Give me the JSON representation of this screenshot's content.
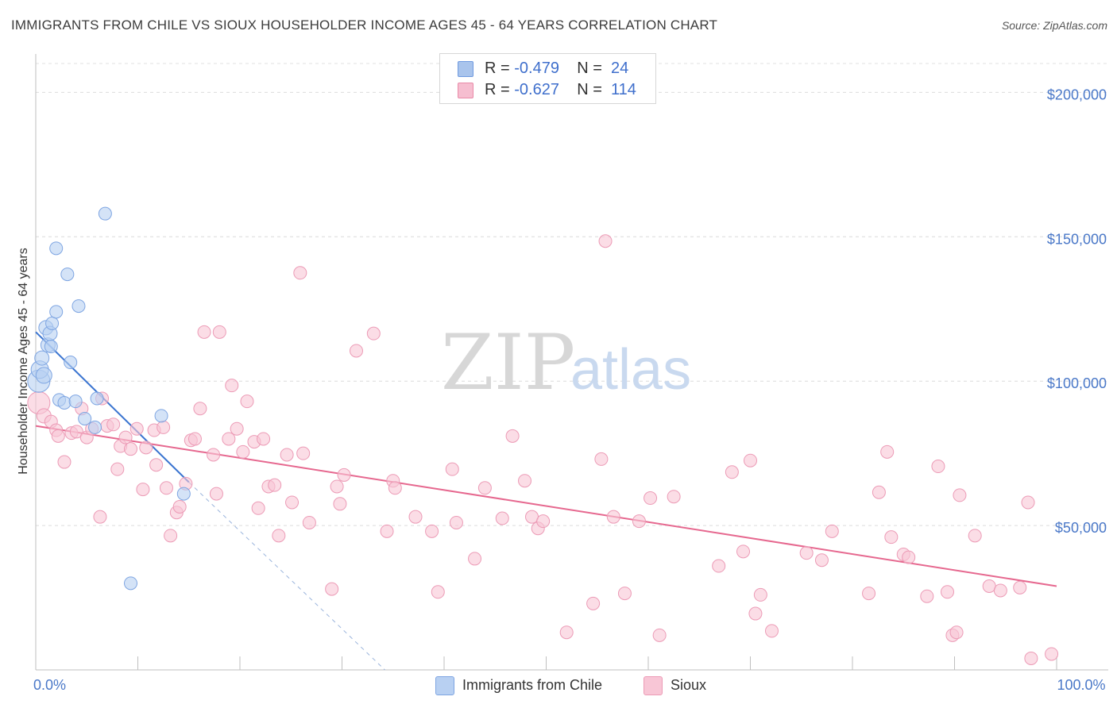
{
  "header": {
    "title": "IMMIGRANTS FROM CHILE VS SIOUX HOUSEHOLDER INCOME AGES 45 - 64 YEARS CORRELATION CHART",
    "source": "Source: ZipAtlas.com"
  },
  "watermark": {
    "zip": "ZIP",
    "atlas": "atlas"
  },
  "legend": {
    "rows": [
      {
        "r_label": "R =",
        "r_value": "-0.479",
        "n_label": "N =",
        "n_value": "24",
        "color": "#a9c4ec",
        "border": "#6f9ae0"
      },
      {
        "r_label": "R =",
        "r_value": "-0.627",
        "n_label": "N =",
        "n_value": "114",
        "color": "#f6bed0",
        "border": "#e98aa8"
      }
    ]
  },
  "bottom_legend": [
    {
      "label": "Immigrants from Chile",
      "color": "#b8d0f2",
      "border": "#7ea5e2"
    },
    {
      "label": "Sioux",
      "color": "#f8c6d6",
      "border": "#ec9bb6"
    }
  ],
  "chart_data": {
    "type": "scatter",
    "title": "IMMIGRANTS FROM CHILE VS SIOUX HOUSEHOLDER INCOME AGES 45 - 64 YEARS CORRELATION CHART",
    "xlabel": "",
    "ylabel": "Householder Income Ages 45 - 64 years",
    "xlim": [
      0,
      100
    ],
    "ylim": [
      0,
      210000
    ],
    "x_tick_labels": [
      {
        "value": 0,
        "label": "0.0%"
      },
      {
        "value": 100,
        "label": "100.0%"
      }
    ],
    "x_minor_ticks": [
      0,
      10,
      20,
      30,
      40,
      50,
      60,
      70,
      80,
      90,
      100
    ],
    "y_ticks": [
      {
        "value": 50000,
        "label": "$50,000"
      },
      {
        "value": 100000,
        "label": "$100,000"
      },
      {
        "value": 150000,
        "label": "$150,000"
      },
      {
        "value": 200000,
        "label": "$200,000"
      }
    ],
    "grid": true,
    "series": [
      {
        "name": "Immigrants from Chile",
        "color": "#b8d0f2",
        "stroke": "#7ea5e2",
        "trend": {
          "x": [
            0,
            15
          ],
          "y": [
            117000,
            65000
          ],
          "color": "#3a74d0",
          "dashed_extension": {
            "x": [
              15,
              34.2
            ],
            "y": [
              65000,
              0
            ]
          }
        },
        "points": [
          [
            0.3,
            100000,
            14
          ],
          [
            0.4,
            104000,
            11
          ],
          [
            0.6,
            108000,
            9
          ],
          [
            0.8,
            102000,
            10
          ],
          [
            1.0,
            118500,
            9
          ],
          [
            1.2,
            112500,
            9
          ],
          [
            1.4,
            116500,
            9
          ],
          [
            1.6,
            120000,
            8
          ],
          [
            2.0,
            124000,
            8
          ],
          [
            2.0,
            146000,
            8
          ],
          [
            3.1,
            137000,
            8
          ],
          [
            3.4,
            106500,
            8
          ],
          [
            4.2,
            126000,
            8
          ],
          [
            2.3,
            93500,
            8
          ],
          [
            2.8,
            92500,
            8
          ],
          [
            3.9,
            93000,
            8
          ],
          [
            4.8,
            87000,
            8
          ],
          [
            5.8,
            84000,
            8
          ],
          [
            6.0,
            94000,
            8
          ],
          [
            6.8,
            158000,
            8
          ],
          [
            12.3,
            88000,
            8
          ],
          [
            14.5,
            61000,
            8
          ],
          [
            9.3,
            30000,
            8
          ],
          [
            1.5,
            112000,
            8
          ]
        ]
      },
      {
        "name": "Sioux",
        "color": "#f8c6d6",
        "stroke": "#ec9bb6",
        "trend": {
          "x": [
            0,
            100
          ],
          "y": [
            84500,
            29000
          ],
          "color": "#e6688f"
        },
        "points": [
          [
            0.3,
            92500,
            14
          ],
          [
            0.8,
            88000,
            9
          ],
          [
            1.5,
            86000,
            8
          ],
          [
            2.0,
            83000,
            8
          ],
          [
            2.2,
            81000,
            8
          ],
          [
            2.8,
            72000,
            8
          ],
          [
            3.5,
            82000,
            8
          ],
          [
            4.0,
            82500,
            8
          ],
          [
            4.5,
            90500,
            8
          ],
          [
            5.0,
            80500,
            8
          ],
          [
            5.5,
            83500,
            8
          ],
          [
            6.3,
            53000,
            8
          ],
          [
            6.5,
            94000,
            8
          ],
          [
            7.0,
            84500,
            8
          ],
          [
            7.6,
            85000,
            8
          ],
          [
            8.0,
            69500,
            8
          ],
          [
            8.3,
            77500,
            8
          ],
          [
            8.8,
            80500,
            8
          ],
          [
            9.3,
            76500,
            8
          ],
          [
            9.9,
            83500,
            8
          ],
          [
            10.5,
            62500,
            8
          ],
          [
            10.8,
            77000,
            8
          ],
          [
            11.6,
            83000,
            8
          ],
          [
            11.8,
            71000,
            8
          ],
          [
            12.5,
            84000,
            8
          ],
          [
            12.8,
            63000,
            8
          ],
          [
            13.2,
            46500,
            8
          ],
          [
            13.8,
            54500,
            8
          ],
          [
            14.1,
            56500,
            8
          ],
          [
            14.7,
            64500,
            8
          ],
          [
            15.2,
            79500,
            8
          ],
          [
            15.6,
            80000,
            8
          ],
          [
            16.1,
            90500,
            8
          ],
          [
            16.5,
            117000,
            8
          ],
          [
            17.4,
            74500,
            8
          ],
          [
            17.7,
            61000,
            8
          ],
          [
            18.0,
            117000,
            8
          ],
          [
            18.9,
            80000,
            8
          ],
          [
            19.2,
            98500,
            8
          ],
          [
            19.7,
            83500,
            8
          ],
          [
            20.3,
            75500,
            8
          ],
          [
            20.7,
            93000,
            8
          ],
          [
            21.4,
            79000,
            8
          ],
          [
            21.8,
            56000,
            8
          ],
          [
            22.3,
            80000,
            8
          ],
          [
            22.8,
            63500,
            8
          ],
          [
            23.4,
            64000,
            8
          ],
          [
            23.8,
            46500,
            8
          ],
          [
            24.6,
            74500,
            8
          ],
          [
            25.1,
            58000,
            8
          ],
          [
            25.9,
            137500,
            8
          ],
          [
            26.2,
            75000,
            8
          ],
          [
            26.8,
            51000,
            8
          ],
          [
            29.0,
            28000,
            8
          ],
          [
            29.5,
            63500,
            8
          ],
          [
            29.8,
            57500,
            8
          ],
          [
            30.2,
            67500,
            8
          ],
          [
            31.4,
            110500,
            8
          ],
          [
            33.1,
            116500,
            8
          ],
          [
            34.4,
            48000,
            8
          ],
          [
            35.0,
            65500,
            8
          ],
          [
            35.2,
            63000,
            8
          ],
          [
            37.2,
            53000,
            8
          ],
          [
            38.8,
            48000,
            8
          ],
          [
            39.4,
            27000,
            8
          ],
          [
            40.8,
            69500,
            8
          ],
          [
            41.2,
            51000,
            8
          ],
          [
            43.0,
            38500,
            8
          ],
          [
            44.0,
            63000,
            8
          ],
          [
            45.7,
            52500,
            8
          ],
          [
            46.7,
            81000,
            8
          ],
          [
            47.9,
            65500,
            8
          ],
          [
            48.6,
            53000,
            8
          ],
          [
            49.2,
            49000,
            8
          ],
          [
            49.7,
            51500,
            8
          ],
          [
            52.0,
            13000,
            8
          ],
          [
            54.6,
            23000,
            8
          ],
          [
            55.4,
            73000,
            8
          ],
          [
            56.6,
            53000,
            8
          ],
          [
            57.7,
            26500,
            8
          ],
          [
            59.1,
            51500,
            8
          ],
          [
            60.2,
            59500,
            8
          ],
          [
            61.1,
            12000,
            8
          ],
          [
            62.5,
            60000,
            8
          ],
          [
            66.9,
            36000,
            8
          ],
          [
            68.2,
            68500,
            8
          ],
          [
            69.3,
            41000,
            8
          ],
          [
            70.5,
            19500,
            8
          ],
          [
            71.0,
            26000,
            8
          ],
          [
            72.1,
            13500,
            8
          ],
          [
            75.5,
            40500,
            8
          ],
          [
            77.0,
            38000,
            8
          ],
          [
            78.0,
            48000,
            8
          ],
          [
            81.6,
            26500,
            8
          ],
          [
            82.6,
            61500,
            8
          ],
          [
            83.4,
            75500,
            8
          ],
          [
            83.8,
            46000,
            8
          ],
          [
            85.0,
            40000,
            8
          ],
          [
            85.5,
            39000,
            8
          ],
          [
            87.3,
            25500,
            8
          ],
          [
            88.4,
            70500,
            8
          ],
          [
            89.3,
            27000,
            8
          ],
          [
            89.8,
            12000,
            8
          ],
          [
            90.2,
            13000,
            8
          ],
          [
            90.5,
            60500,
            8
          ],
          [
            92.0,
            46500,
            8
          ],
          [
            93.4,
            29000,
            8
          ],
          [
            94.5,
            27500,
            8
          ],
          [
            96.4,
            28500,
            8
          ],
          [
            97.2,
            58000,
            8
          ],
          [
            97.5,
            4000,
            8
          ],
          [
            99.5,
            5500,
            8
          ],
          [
            70.0,
            72500,
            8
          ],
          [
            55.8,
            148500,
            8
          ]
        ]
      }
    ]
  }
}
